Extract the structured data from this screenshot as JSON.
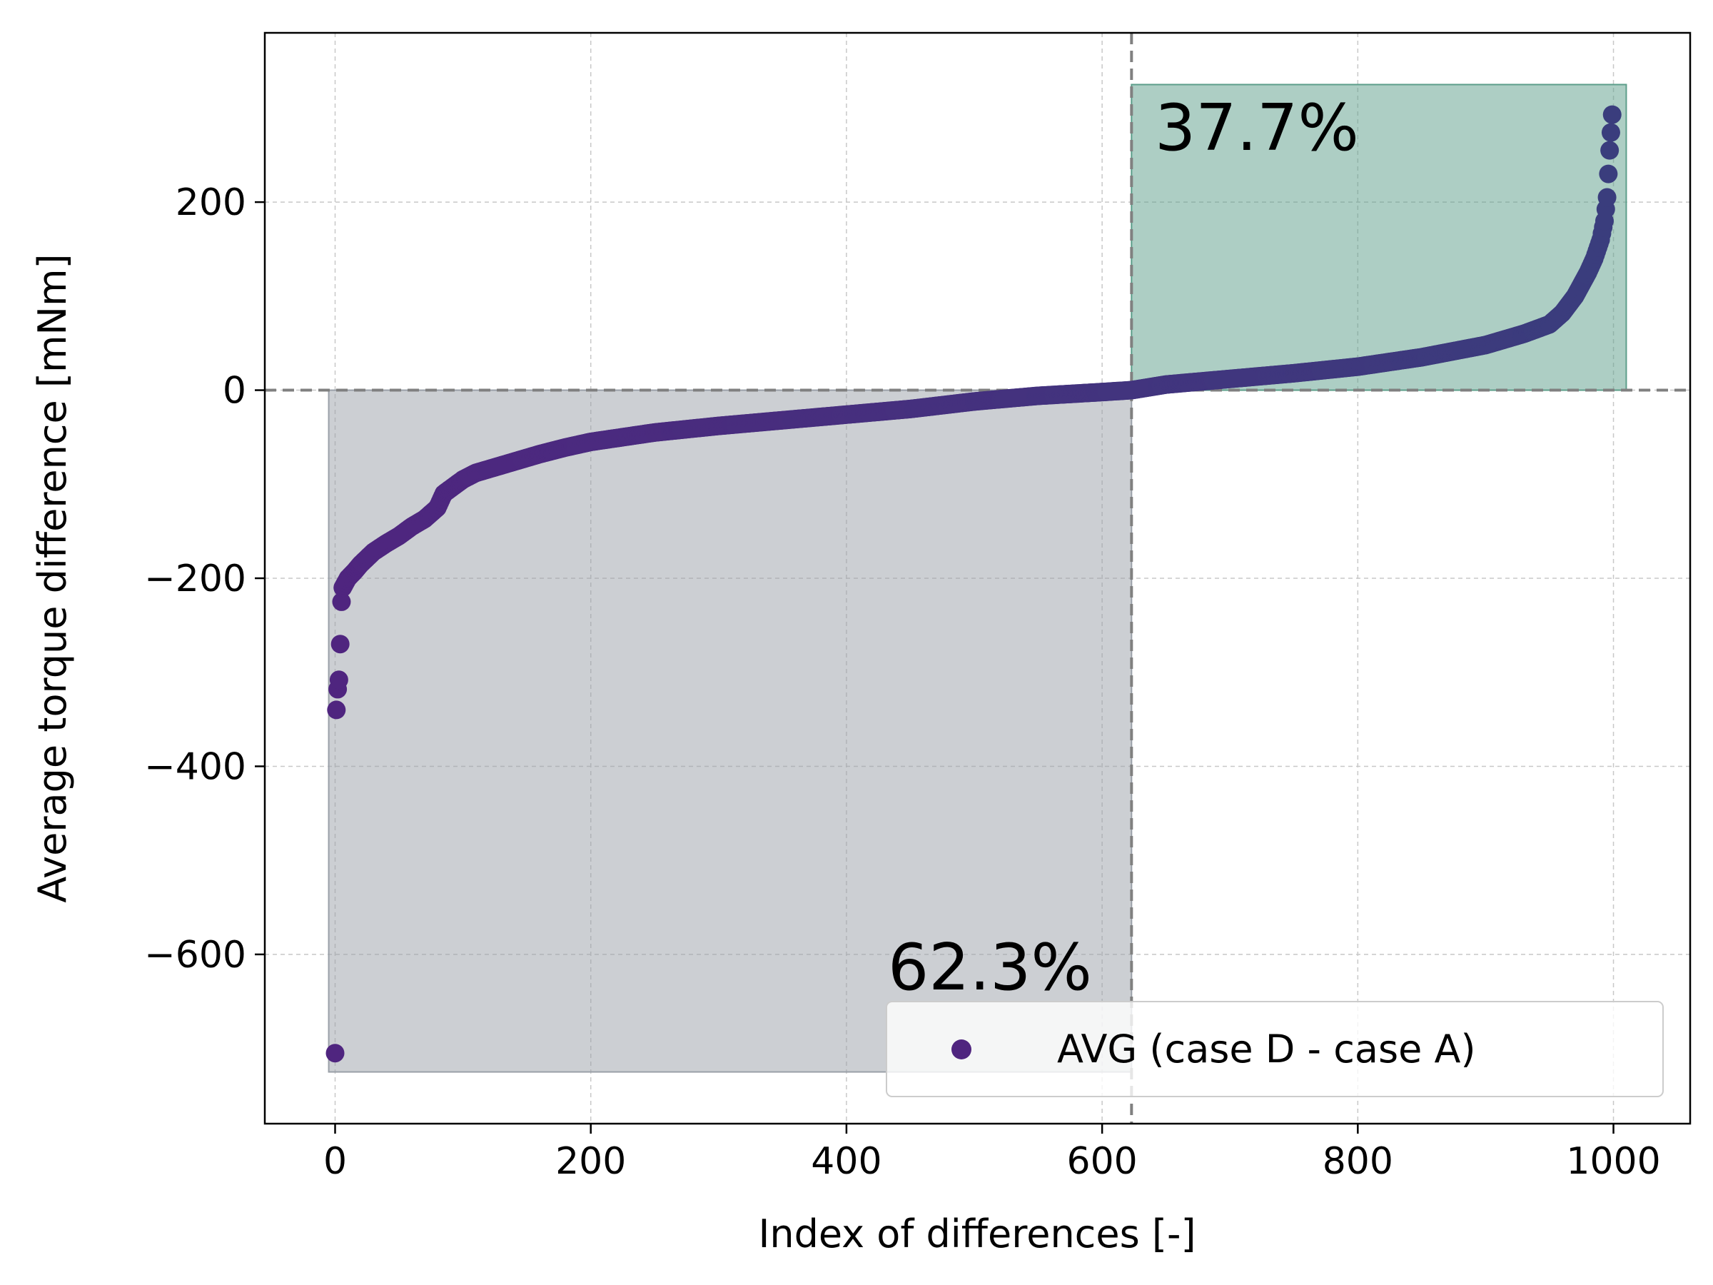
{
  "chart_data": {
    "type": "scatter",
    "xlabel": "Index of differences [-]",
    "ylabel": "Average torque difference [mNm]",
    "xlim": [
      -55,
      1060
    ],
    "ylim": [
      -780,
      380
    ],
    "xticks": [
      0,
      200,
      400,
      600,
      800,
      1000
    ],
    "yticks": [
      200,
      0,
      -200,
      -400,
      -600
    ],
    "xtick_labels": [
      "0",
      "200",
      "400",
      "600",
      "800",
      "1000"
    ],
    "ytick_labels": [
      "200",
      "0",
      "−200",
      "−400",
      "−600"
    ],
    "grid": true,
    "legend_position": "lower-right",
    "colors": {
      "negative_region": "#9aa0a8",
      "positive_region": "#5c9e8a",
      "early_points": "#4f257f",
      "late_points": "#3a3d7d",
      "reference_lines": "#808080"
    },
    "reference_lines": {
      "zero_x_index": 623,
      "zero_y": 0
    },
    "regions": [
      {
        "name": "negative",
        "x_range": [
          -5,
          623
        ],
        "y_range": [
          -725,
          0
        ],
        "label": "62.3%"
      },
      {
        "name": "positive",
        "x_range": [
          623,
          1010
        ],
        "y_range": [
          0,
          325
        ],
        "label": "37.7%"
      }
    ],
    "series": [
      {
        "name": "AVG (case D - case A)",
        "n_points": 1000,
        "curve_x": [
          0,
          1,
          2,
          3,
          4,
          5,
          6,
          8,
          10,
          15,
          20,
          30,
          40,
          50,
          60,
          70,
          80,
          85,
          90,
          100,
          110,
          120,
          140,
          160,
          180,
          200,
          250,
          300,
          350,
          400,
          450,
          500,
          550,
          600,
          623,
          650,
          700,
          750,
          800,
          850,
          900,
          930,
          950,
          960,
          970,
          980,
          985,
          990,
          993,
          995,
          997,
          999
        ],
        "curve_y": [
          -705,
          -340,
          -318,
          -308,
          -270,
          -225,
          -210,
          -205,
          -200,
          -193,
          -185,
          -172,
          -163,
          -155,
          -145,
          -137,
          -125,
          -110,
          -105,
          -95,
          -88,
          -84,
          -76,
          -68,
          -61,
          -55,
          -45,
          -38,
          -32,
          -26,
          -20,
          -12,
          -6,
          -2,
          0,
          6,
          12,
          18,
          25,
          35,
          48,
          60,
          70,
          82,
          100,
          125,
          140,
          160,
          180,
          205,
          255,
          293
        ]
      }
    ]
  }
}
